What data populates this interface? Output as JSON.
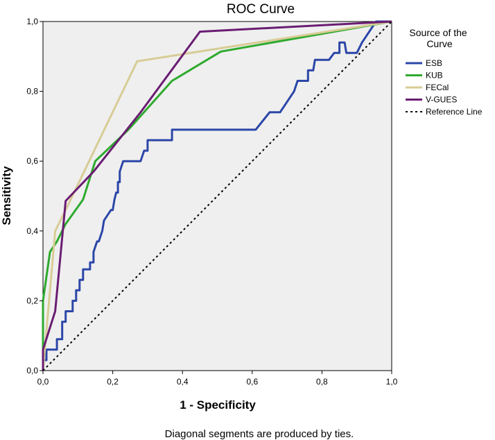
{
  "chart_data": {
    "type": "line",
    "title": "ROC Curve",
    "xlabel": "1 - Specificity",
    "ylabel": "Sensitivity",
    "xlim": [
      0,
      1
    ],
    "ylim": [
      0,
      1
    ],
    "x_ticks": [
      "0,0",
      "0,2",
      "0,4",
      "0,6",
      "0,8",
      "1,0"
    ],
    "y_ticks": [
      "0,0",
      "0,2",
      "0,4",
      "0,6",
      "0,8",
      "1,0"
    ],
    "grid": false,
    "legend_title": "Source of the Curve",
    "legend_position": "right",
    "footnote": "Diagonal segments are produced by ties.",
    "series": [
      {
        "name": "ESB",
        "color": "#2b46a8",
        "points": [
          [
            0,
            0
          ],
          [
            0,
            0.03
          ],
          [
            0.01,
            0.03
          ],
          [
            0.01,
            0.06
          ],
          [
            0.04,
            0.06
          ],
          [
            0.04,
            0.09
          ],
          [
            0.055,
            0.09
          ],
          [
            0.055,
            0.14
          ],
          [
            0.065,
            0.14
          ],
          [
            0.065,
            0.17
          ],
          [
            0.085,
            0.17
          ],
          [
            0.085,
            0.2
          ],
          [
            0.095,
            0.2
          ],
          [
            0.095,
            0.23
          ],
          [
            0.105,
            0.23
          ],
          [
            0.105,
            0.26
          ],
          [
            0.115,
            0.26
          ],
          [
            0.115,
            0.29
          ],
          [
            0.135,
            0.29
          ],
          [
            0.135,
            0.31
          ],
          [
            0.145,
            0.31
          ],
          [
            0.145,
            0.34
          ],
          [
            0.155,
            0.37
          ],
          [
            0.16,
            0.37
          ],
          [
            0.17,
            0.4
          ],
          [
            0.175,
            0.43
          ],
          [
            0.195,
            0.46
          ],
          [
            0.2,
            0.46
          ],
          [
            0.205,
            0.49
          ],
          [
            0.21,
            0.51
          ],
          [
            0.215,
            0.51
          ],
          [
            0.215,
            0.54
          ],
          [
            0.22,
            0.54
          ],
          [
            0.22,
            0.57
          ],
          [
            0.23,
            0.6
          ],
          [
            0.28,
            0.6
          ],
          [
            0.29,
            0.63
          ],
          [
            0.3,
            0.63
          ],
          [
            0.3,
            0.66
          ],
          [
            0.37,
            0.66
          ],
          [
            0.37,
            0.69
          ],
          [
            0.61,
            0.69
          ],
          [
            0.65,
            0.74
          ],
          [
            0.68,
            0.74
          ],
          [
            0.7,
            0.77
          ],
          [
            0.72,
            0.8
          ],
          [
            0.73,
            0.83
          ],
          [
            0.76,
            0.83
          ],
          [
            0.76,
            0.86
          ],
          [
            0.775,
            0.86
          ],
          [
            0.78,
            0.89
          ],
          [
            0.82,
            0.89
          ],
          [
            0.835,
            0.91
          ],
          [
            0.85,
            0.91
          ],
          [
            0.85,
            0.94
          ],
          [
            0.865,
            0.94
          ],
          [
            0.87,
            0.91
          ],
          [
            0.9,
            0.91
          ],
          [
            0.915,
            0.94
          ],
          [
            0.955,
            1.0
          ],
          [
            1.0,
            1.0
          ]
        ]
      },
      {
        "name": "KUB",
        "color": "#2eaa2e",
        "points": [
          [
            0,
            0
          ],
          [
            0,
            0.2
          ],
          [
            0.02,
            0.34
          ],
          [
            0.04,
            0.37
          ],
          [
            0.065,
            0.42
          ],
          [
            0.115,
            0.49
          ],
          [
            0.15,
            0.6
          ],
          [
            0.245,
            0.69
          ],
          [
            0.37,
            0.83
          ],
          [
            0.51,
            0.914
          ],
          [
            1.0,
            1.0
          ]
        ]
      },
      {
        "name": "FECal",
        "color": "#d8cc96",
        "points": [
          [
            0,
            0
          ],
          [
            0.035,
            0.4
          ],
          [
            0.065,
            0.46
          ],
          [
            0.27,
            0.886
          ],
          [
            1.0,
            1.0
          ]
        ]
      },
      {
        "name": "V-GUES",
        "color": "#6a1d72",
        "points": [
          [
            0,
            0
          ],
          [
            0,
            0.06
          ],
          [
            0.035,
            0.17
          ],
          [
            0.065,
            0.486
          ],
          [
            0.145,
            0.57
          ],
          [
            0.28,
            0.74
          ],
          [
            0.45,
            0.971
          ],
          [
            1.0,
            1.0
          ]
        ]
      },
      {
        "name": "Reference Line",
        "color": "#000000",
        "dashed": true,
        "points": [
          [
            0,
            0
          ],
          [
            1,
            1
          ]
        ]
      }
    ]
  }
}
